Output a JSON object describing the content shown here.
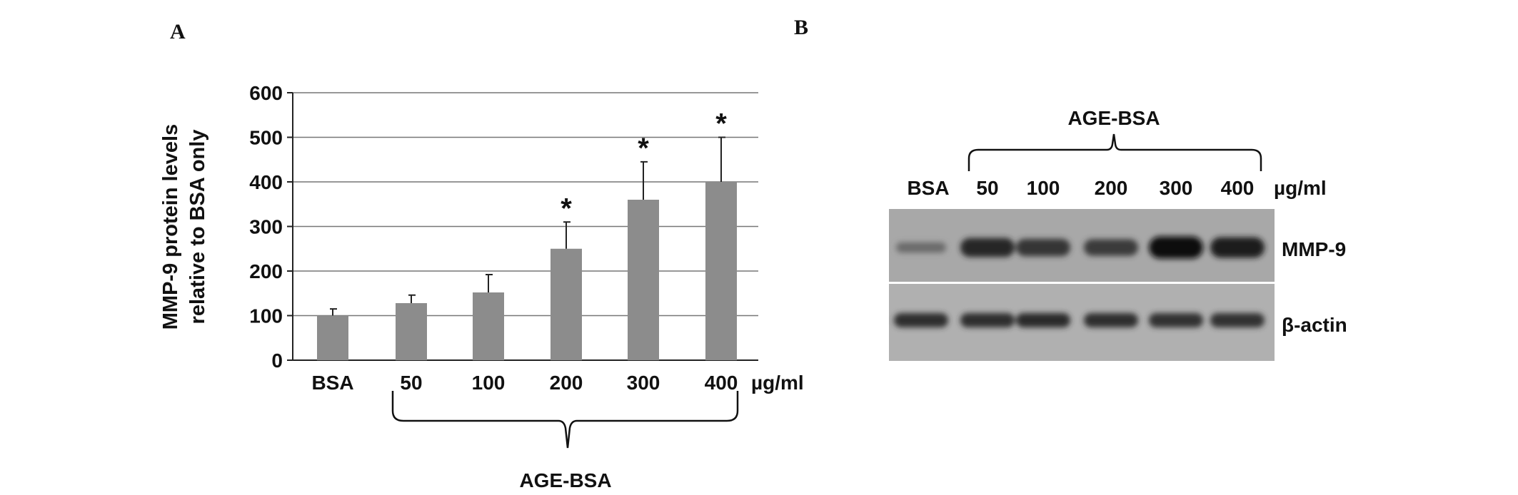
{
  "panels": {
    "a": "A",
    "b": "B"
  },
  "chart_data": [
    {
      "type": "bar",
      "panel": "A",
      "categories": [
        "BSA",
        "50",
        "100",
        "200",
        "300",
        "400"
      ],
      "values": [
        100,
        128,
        152,
        250,
        360,
        400
      ],
      "errors": [
        15,
        18,
        40,
        60,
        85,
        100
      ],
      "significant": [
        false,
        false,
        false,
        true,
        true,
        true
      ],
      "significance_marker": "*",
      "ylabel": "MMP-9 protein levels relative to BSA only",
      "ylabel_lines": [
        "MMP-9 protein levels",
        "relative to BSA only"
      ],
      "yticks": [
        0,
        100,
        200,
        300,
        400,
        500,
        600
      ],
      "ylim": [
        0,
        600
      ],
      "unit": "µg/ml",
      "group_label": "AGE-BSA",
      "grid": true,
      "bar_color": "#8c8c8c"
    },
    {
      "type": "table",
      "panel": "B",
      "lanes": [
        "BSA",
        "50",
        "100",
        "200",
        "300",
        "400"
      ],
      "unit": "µg/ml",
      "group_label": "AGE-BSA",
      "rows": [
        "MMP-9",
        "β-actin"
      ],
      "band_intensity": {
        "MMP-9": [
          0.2,
          0.75,
          0.65,
          0.6,
          0.95,
          0.85
        ],
        "β-actin": [
          0.7,
          0.7,
          0.72,
          0.7,
          0.68,
          0.66
        ]
      }
    }
  ]
}
